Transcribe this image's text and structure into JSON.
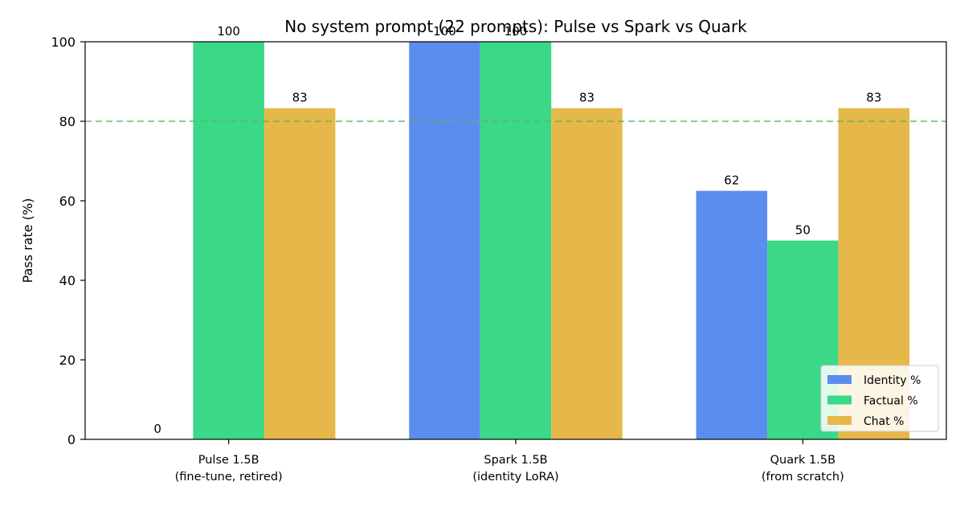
{
  "chart_data": {
    "type": "bar",
    "title": "No system prompt (22 prompts): Pulse vs Spark vs Quark",
    "xlabel": "",
    "ylabel": "Pass rate (%)",
    "ylim": [
      0,
      100
    ],
    "yticks": [
      "0",
      "20",
      "40",
      "60",
      "80",
      "100"
    ],
    "categories": [
      [
        "Pulse 1.5B",
        "(fine-tune, retired)"
      ],
      [
        "Spark 1.5B",
        "(identity LoRA)"
      ],
      [
        "Quark 1.5B",
        "(from scratch)"
      ]
    ],
    "series": [
      {
        "name": "Identity %",
        "color": "#5b8def",
        "values": [
          0,
          100,
          62.5
        ],
        "labels": [
          "0",
          "100",
          "62"
        ]
      },
      {
        "name": "Factual %",
        "color": "#3ad887",
        "values": [
          100,
          100,
          50
        ],
        "labels": [
          "100",
          "100",
          "50"
        ]
      },
      {
        "name": "Chat %",
        "color": "#e6b84a",
        "values": [
          83.3,
          83.3,
          83.3
        ],
        "labels": [
          "83",
          "83",
          "83"
        ]
      }
    ],
    "reference_line": {
      "value": 80,
      "color": "#5cb85c",
      "style": "dashed"
    },
    "grid": false,
    "legend": "lower-right"
  }
}
